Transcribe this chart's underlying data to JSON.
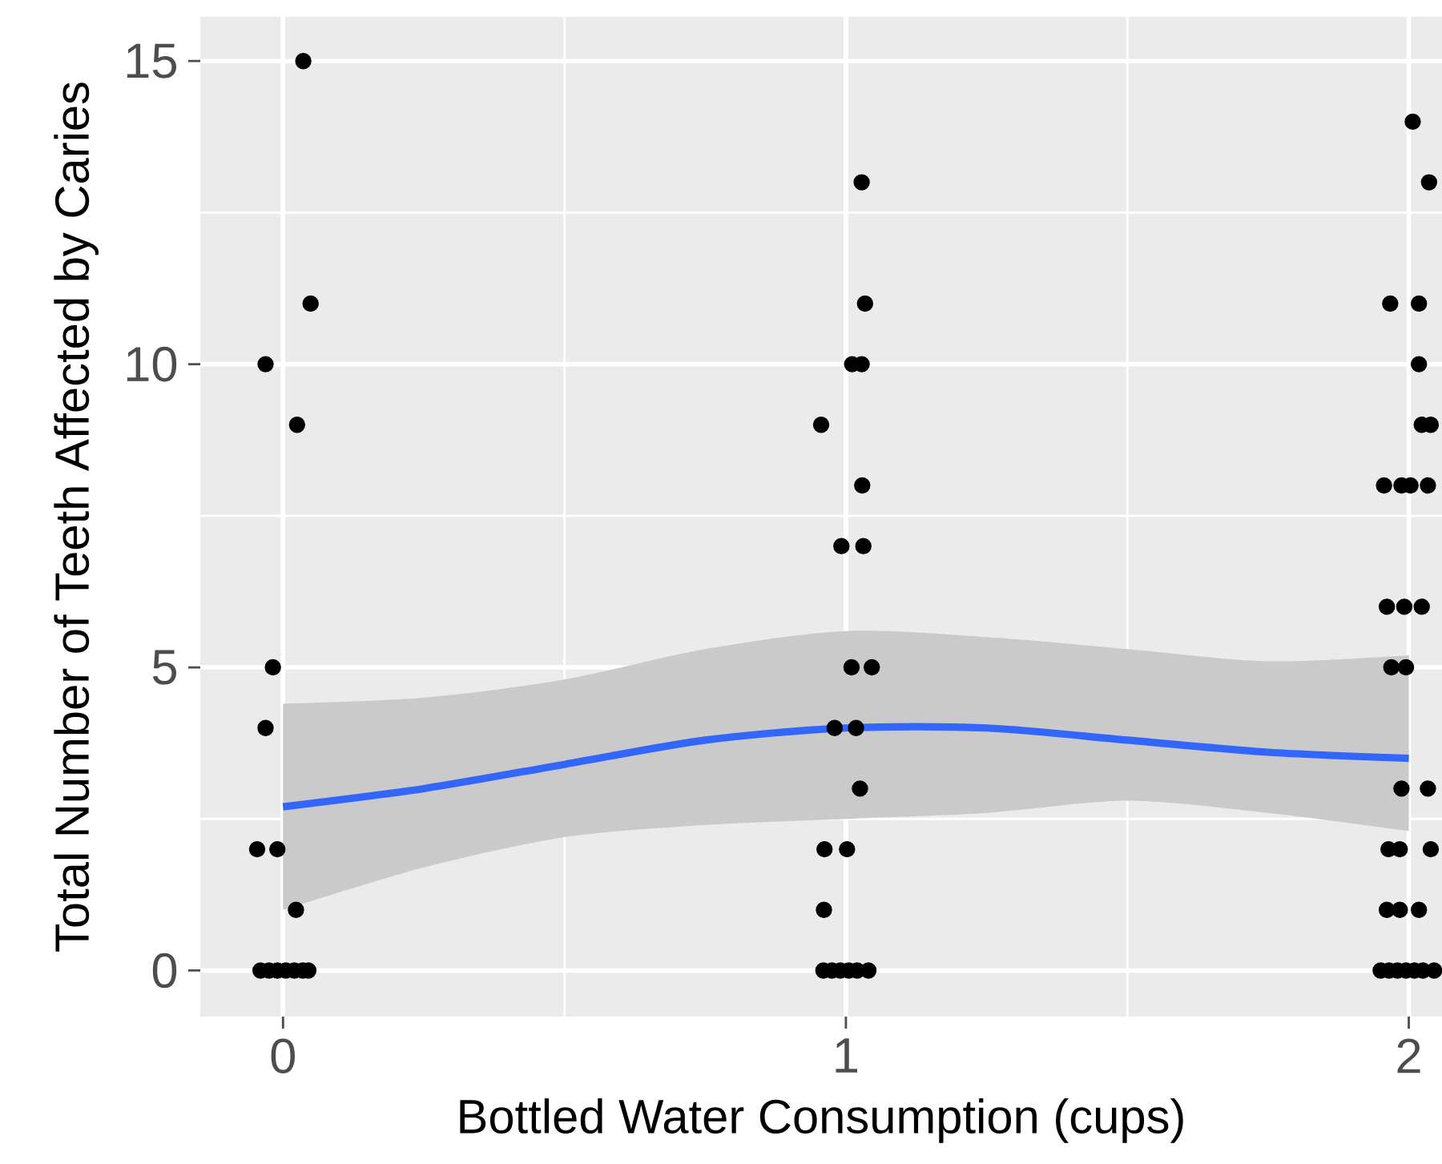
{
  "chart_data": {
    "type": "scatter",
    "xlabel": "Bottled Water Consumption (cups)",
    "ylabel": "Total Number of Teeth Affected by Caries",
    "xlim": [
      -0.147,
      2.059
    ],
    "ylim": [
      -0.76,
      15.73
    ],
    "xticks": [
      0,
      1,
      2
    ],
    "yticks": [
      0,
      5,
      10,
      15
    ],
    "grid": true,
    "series": [
      {
        "color": "#000000",
        "marker": "circle",
        "x": [
          0.036,
          0.049,
          -0.031,
          0.025,
          -0.018,
          -0.031,
          -0.046,
          -0.01,
          0.023,
          -0.04,
          -0.025,
          -0.01,
          0.005,
          0.02,
          0.035,
          0.045,
          1.028,
          1.034,
          1.011,
          1.028,
          0.956,
          1.029,
          0.992,
          1.031,
          1.01,
          1.046,
          0.98,
          1.018,
          1.025,
          0.962,
          1.002,
          0.961,
          0.96,
          0.975,
          0.99,
          1.005,
          1.02,
          1.04,
          2.007,
          2.036,
          1.967,
          2.018,
          2.018,
          2.023,
          2.039,
          1.956,
          1.987,
          2.003,
          2.034,
          1.961,
          1.992,
          2.023,
          1.969,
          1.995,
          1.987,
          2.034,
          1.964,
          1.984,
          2.039,
          1.961,
          1.984,
          2.018,
          1.95,
          1.965,
          1.98,
          1.995,
          2.01,
          2.025,
          2.045
        ],
        "values": [
          15,
          11,
          10,
          9,
          5,
          4,
          2,
          2,
          1,
          0,
          0,
          0,
          0,
          0,
          0,
          0,
          13,
          11,
          10,
          10,
          9,
          8,
          7,
          7,
          5,
          5,
          4,
          4,
          3,
          2,
          2,
          1,
          0,
          0,
          0,
          0,
          0,
          0,
          14,
          13,
          11,
          11,
          10,
          9,
          9,
          8,
          8,
          8,
          8,
          6,
          6,
          6,
          5,
          5,
          3,
          3,
          2,
          2,
          2,
          1,
          1,
          1,
          0,
          0,
          0,
          0,
          0,
          0,
          0
        ]
      },
      {
        "type": "line",
        "color": "#3366ff",
        "line_style": "solid",
        "x": [
          0,
          0.25,
          0.5,
          0.75,
          1,
          1.25,
          1.5,
          1.75,
          2
        ],
        "values": [
          2.7,
          3.0,
          3.4,
          3.8,
          4.0,
          4.0,
          3.8,
          3.6,
          3.5
        ],
        "lower": [
          1.0,
          1.7,
          2.2,
          2.4,
          2.5,
          2.6,
          2.8,
          2.6,
          2.3
        ],
        "upper": [
          4.4,
          4.5,
          4.8,
          5.3,
          5.6,
          5.5,
          5.3,
          5.1,
          5.2
        ]
      }
    ]
  }
}
